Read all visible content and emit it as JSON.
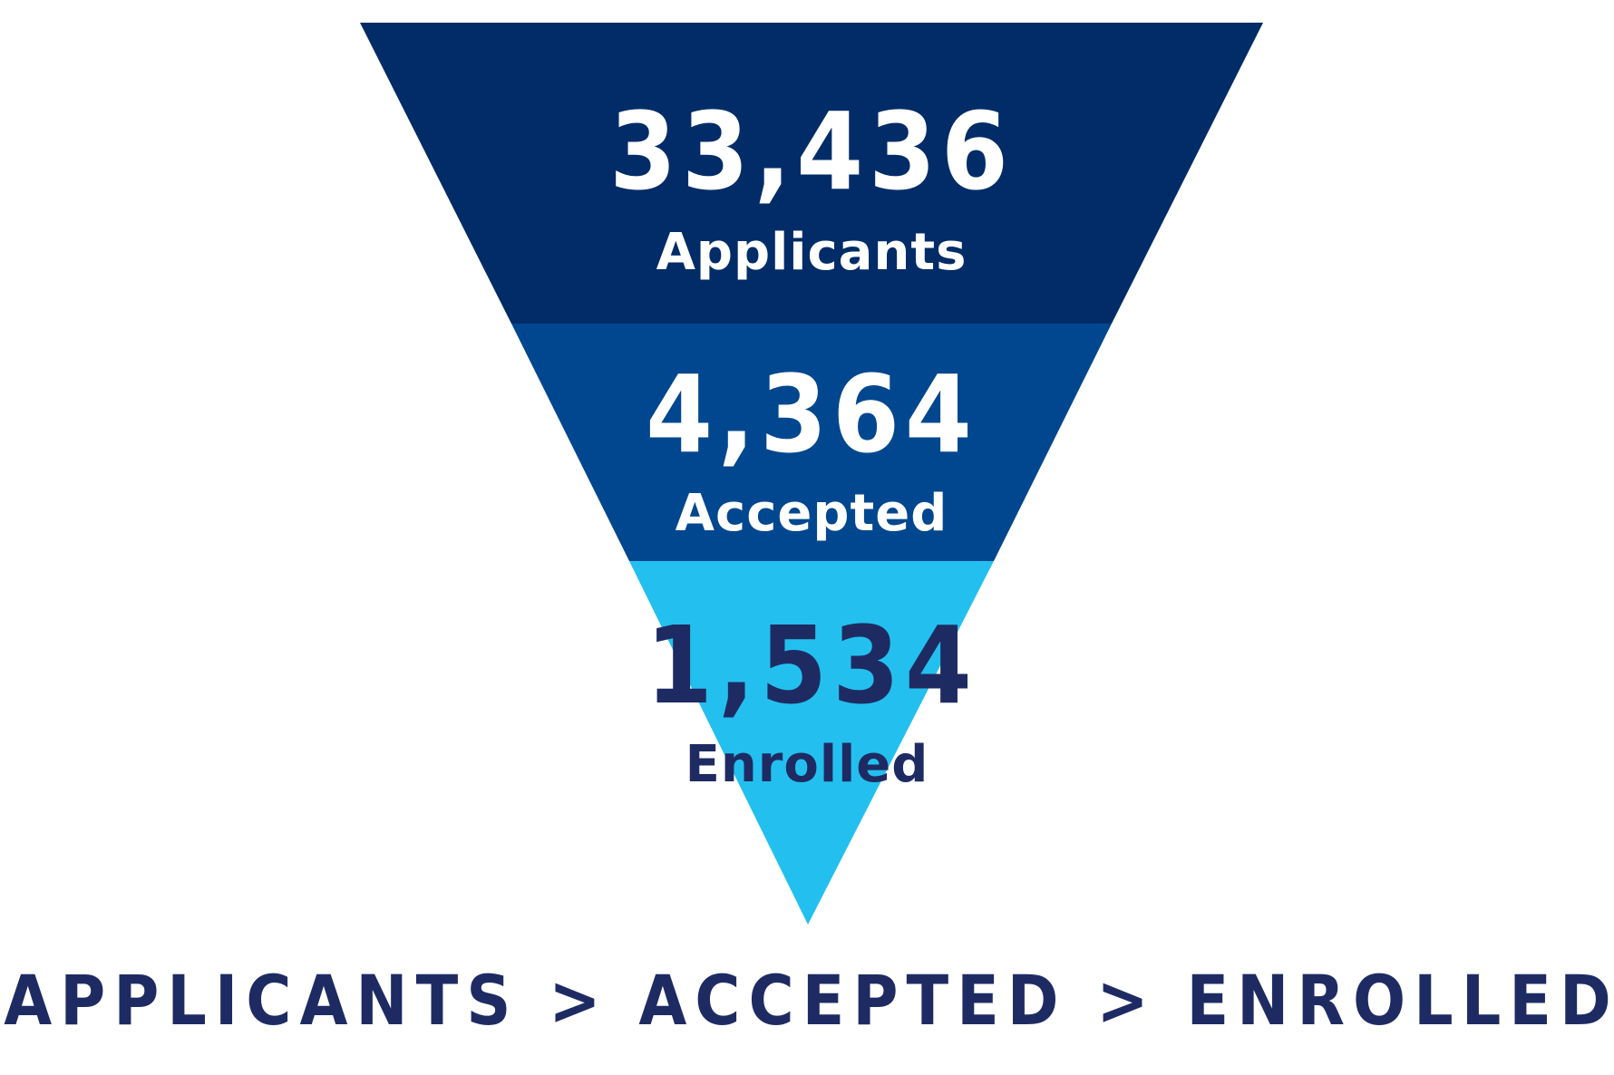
{
  "chart_data": {
    "type": "funnel",
    "stages": [
      {
        "value": "33,436",
        "label": "Applicants",
        "fill": "#012c67",
        "text_color": "#ffffff"
      },
      {
        "value": "4,364",
        "label": "Accepted",
        "fill": "#01478f",
        "text_color": "#ffffff"
      },
      {
        "value": "1,534",
        "label": "Enrolled",
        "fill": "#23c0ef",
        "text_color": "#1e2b63"
      }
    ],
    "caption": "APPLICANTS > ACCEPTED > ENROLLED",
    "caption_color": "#1e2b63"
  }
}
